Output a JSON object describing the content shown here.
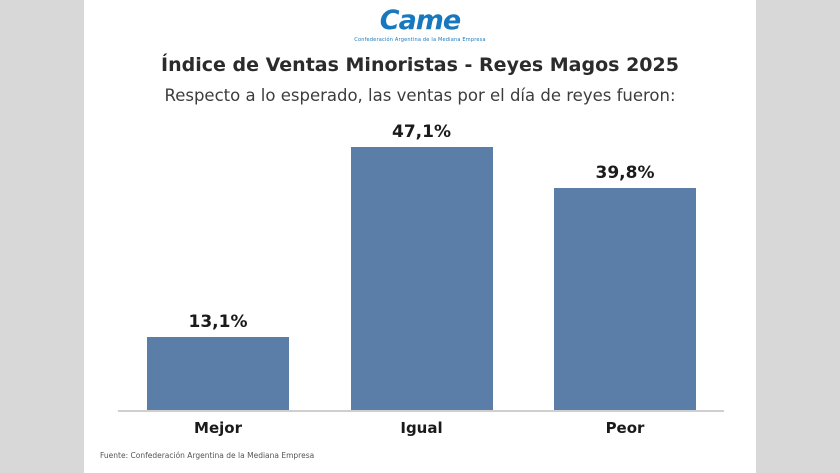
{
  "page": {
    "background": "#d8d8d8",
    "panel_background": "#ffffff"
  },
  "logo": {
    "text": "Came",
    "tagline": "Confederación Argentina de la Mediana Empresa",
    "color": "#1878be"
  },
  "header": {
    "title": "Índice de Ventas Minoristas - Reyes Magos 2025",
    "subtitle": "Respecto a lo esperado, las ventas por el día de reyes fueron:"
  },
  "chart_data": {
    "type": "bar",
    "title": "Índice de Ventas Minoristas - Reyes Magos 2025",
    "subtitle": "Respecto a lo esperado, las ventas por el día de reyes fueron:",
    "categories": [
      "Mejor",
      "Igual",
      "Peor"
    ],
    "values": [
      13.1,
      47.1,
      39.8
    ],
    "value_labels": [
      "13,1%",
      "47,1%",
      "39,8%"
    ],
    "xlabel": "",
    "ylabel": "",
    "ylim": [
      0,
      50
    ],
    "bar_color": "#5a7ea7",
    "grid": false,
    "legend": false,
    "legend_position": "none"
  },
  "footer": {
    "source": "Fuente: Confederación Argentina de la Mediana Empresa"
  }
}
